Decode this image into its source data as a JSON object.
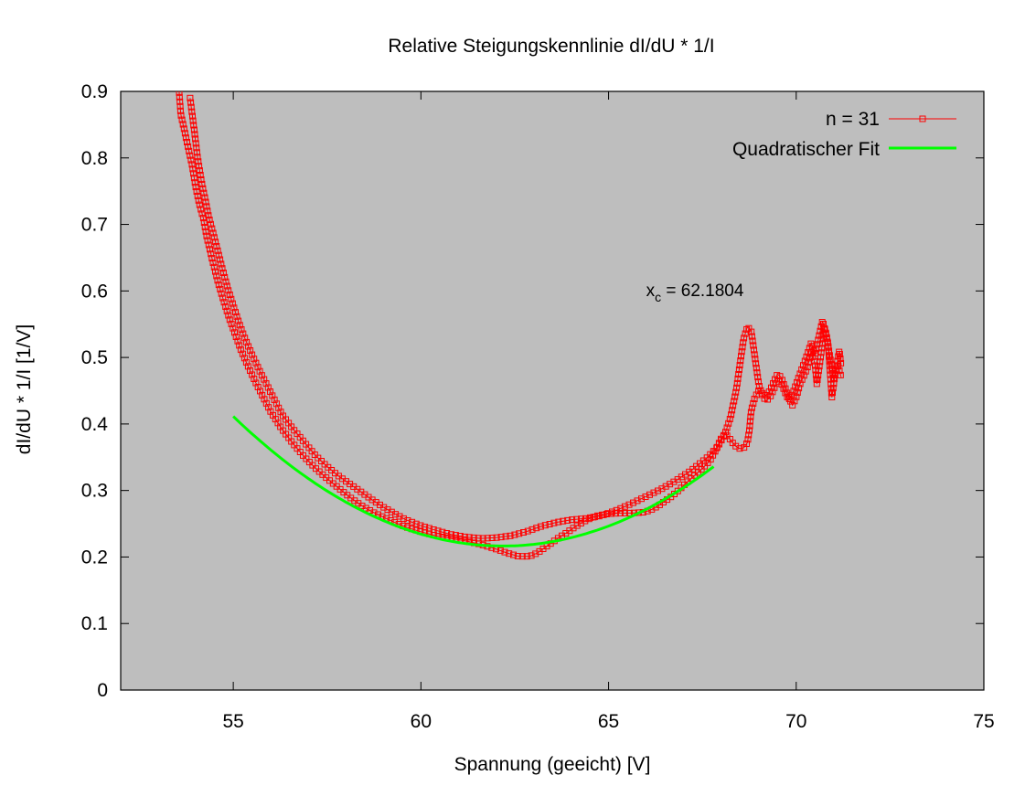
{
  "chart_data": {
    "type": "line",
    "title": "Relative Steigungskennlinie dI/dU * 1/I",
    "xlabel": "Spannung (geeicht) [V]",
    "ylabel": "dI/dU * 1/I [1/V]",
    "xlim": [
      52,
      75
    ],
    "ylim": [
      0,
      0.9
    ],
    "x_ticks": [
      "55",
      "60",
      "65",
      "70",
      "75"
    ],
    "y_ticks": [
      "0",
      "0.1",
      "0.2",
      "0.3",
      "0.4",
      "0.5",
      "0.6",
      "0.7",
      "0.8",
      "0.9"
    ],
    "grid": false,
    "background": "#bebebe",
    "legend_position": "top-right",
    "annotation": {
      "base": "x",
      "subscript": "c",
      "text": " = 62.1804",
      "x": 66.0,
      "y": 0.592
    },
    "series": [
      {
        "name": "n = 31",
        "color": "#ff0000",
        "marker": "square",
        "segments": [
          [
            [
              53.55,
              0.905
            ],
            [
              53.6,
              0.866
            ],
            [
              53.75,
              0.828
            ],
            [
              53.9,
              0.79
            ],
            [
              54.0,
              0.756
            ],
            [
              54.1,
              0.73
            ],
            [
              54.2,
              0.71
            ],
            [
              54.3,
              0.68
            ],
            [
              54.45,
              0.645
            ],
            [
              54.6,
              0.612
            ],
            [
              54.75,
              0.584
            ],
            [
              54.9,
              0.558
            ],
            [
              55.05,
              0.535
            ],
            [
              55.2,
              0.512
            ],
            [
              55.4,
              0.486
            ],
            [
              55.6,
              0.462
            ],
            [
              55.8,
              0.44
            ],
            [
              56.0,
              0.418
            ],
            [
              56.3,
              0.392
            ],
            [
              56.6,
              0.37
            ],
            [
              56.9,
              0.35
            ],
            [
              57.2,
              0.333
            ],
            [
              57.5,
              0.318
            ],
            [
              57.8,
              0.304
            ],
            [
              58.1,
              0.29
            ],
            [
              58.4,
              0.278
            ],
            [
              58.7,
              0.268
            ],
            [
              59.0,
              0.26
            ],
            [
              59.3,
              0.252
            ],
            [
              59.6,
              0.245
            ],
            [
              60.0,
              0.238
            ],
            [
              60.4,
              0.232
            ],
            [
              60.8,
              0.228
            ],
            [
              61.2,
              0.224
            ],
            [
              61.6,
              0.219
            ],
            [
              62.0,
              0.212
            ],
            [
              62.3,
              0.206
            ],
            [
              62.6,
              0.201
            ],
            [
              62.9,
              0.201
            ],
            [
              63.1,
              0.206
            ],
            [
              63.3,
              0.214
            ],
            [
              63.5,
              0.222
            ],
            [
              63.7,
              0.23
            ],
            [
              63.9,
              0.237
            ],
            [
              64.1,
              0.245
            ],
            [
              64.3,
              0.252
            ],
            [
              64.5,
              0.258
            ],
            [
              64.7,
              0.262
            ],
            [
              65.0,
              0.265
            ],
            [
              65.3,
              0.266
            ],
            [
              65.6,
              0.266
            ],
            [
              65.9,
              0.267
            ],
            [
              66.1,
              0.27
            ],
            [
              66.3,
              0.276
            ],
            [
              66.5,
              0.284
            ],
            [
              66.7,
              0.292
            ],
            [
              66.9,
              0.302
            ],
            [
              67.1,
              0.313
            ],
            [
              67.3,
              0.323
            ],
            [
              67.5,
              0.333
            ],
            [
              67.7,
              0.345
            ],
            [
              67.85,
              0.36
            ],
            [
              68.0,
              0.378
            ],
            [
              68.1,
              0.385
            ],
            [
              68.2,
              0.38
            ],
            [
              68.3,
              0.372
            ],
            [
              68.4,
              0.366
            ],
            [
              68.5,
              0.363
            ],
            [
              68.6,
              0.364
            ],
            [
              68.7,
              0.372
            ],
            [
              68.75,
              0.39
            ],
            [
              68.8,
              0.42
            ],
            [
              68.9,
              0.44
            ],
            [
              69.0,
              0.45
            ],
            [
              69.1,
              0.446
            ],
            [
              69.2,
              0.443
            ],
            [
              69.3,
              0.45
            ],
            [
              69.4,
              0.463
            ],
            [
              69.5,
              0.475
            ],
            [
              69.6,
              0.47
            ],
            [
              69.7,
              0.455
            ],
            [
              69.8,
              0.44
            ],
            [
              69.9,
              0.428
            ],
            [
              70.0,
              0.44
            ],
            [
              70.1,
              0.46
            ],
            [
              70.2,
              0.472
            ],
            [
              70.3,
              0.485
            ],
            [
              70.4,
              0.51
            ],
            [
              70.5,
              0.49
            ],
            [
              70.55,
              0.46
            ],
            [
              70.65,
              0.5
            ],
            [
              70.75,
              0.545
            ],
            [
              70.85,
              0.52
            ],
            [
              70.9,
              0.48
            ],
            [
              70.95,
              0.44
            ],
            [
              71.05,
              0.48
            ],
            [
              71.15,
              0.51
            ],
            [
              71.2,
              0.487
            ]
          ],
          [
            [
              53.85,
              0.89
            ],
            [
              53.95,
              0.846
            ],
            [
              54.05,
              0.8
            ],
            [
              54.15,
              0.765
            ],
            [
              54.25,
              0.738
            ],
            [
              54.35,
              0.71
            ],
            [
              54.45,
              0.69
            ],
            [
              54.55,
              0.668
            ],
            [
              54.7,
              0.635
            ],
            [
              54.85,
              0.604
            ],
            [
              55.0,
              0.578
            ],
            [
              55.15,
              0.552
            ],
            [
              55.3,
              0.53
            ],
            [
              55.5,
              0.504
            ],
            [
              55.7,
              0.48
            ],
            [
              55.9,
              0.458
            ],
            [
              56.1,
              0.436
            ],
            [
              56.3,
              0.414
            ],
            [
              56.6,
              0.392
            ],
            [
              56.9,
              0.372
            ],
            [
              57.2,
              0.352
            ],
            [
              57.5,
              0.336
            ],
            [
              57.8,
              0.322
            ],
            [
              58.1,
              0.31
            ],
            [
              58.4,
              0.298
            ],
            [
              58.7,
              0.286
            ],
            [
              59.0,
              0.275
            ],
            [
              59.3,
              0.265
            ],
            [
              59.6,
              0.256
            ],
            [
              60.0,
              0.247
            ],
            [
              60.4,
              0.24
            ],
            [
              60.8,
              0.234
            ],
            [
              61.2,
              0.23
            ],
            [
              61.6,
              0.228
            ],
            [
              62.0,
              0.229
            ],
            [
              62.4,
              0.232
            ],
            [
              62.8,
              0.238
            ],
            [
              63.2,
              0.246
            ],
            [
              63.6,
              0.252
            ],
            [
              64.0,
              0.256
            ],
            [
              64.4,
              0.258
            ],
            [
              64.8,
              0.262
            ],
            [
              65.2,
              0.27
            ],
            [
              65.6,
              0.28
            ],
            [
              66.0,
              0.291
            ],
            [
              66.4,
              0.302
            ],
            [
              66.8,
              0.315
            ],
            [
              67.2,
              0.33
            ],
            [
              67.6,
              0.348
            ],
            [
              67.9,
              0.365
            ],
            [
              68.1,
              0.385
            ],
            [
              68.25,
              0.41
            ],
            [
              68.4,
              0.45
            ],
            [
              68.5,
              0.49
            ],
            [
              68.6,
              0.528
            ],
            [
              68.7,
              0.546
            ],
            [
              68.8,
              0.54
            ],
            [
              68.9,
              0.5
            ],
            [
              69.0,
              0.46
            ],
            [
              69.1,
              0.442
            ],
            [
              69.2,
              0.435
            ],
            [
              69.3,
              0.44
            ],
            [
              69.4,
              0.452
            ],
            [
              69.5,
              0.465
            ],
            [
              69.6,
              0.462
            ],
            [
              69.7,
              0.448
            ],
            [
              69.8,
              0.436
            ],
            [
              69.9,
              0.445
            ],
            [
              70.0,
              0.46
            ],
            [
              70.1,
              0.475
            ],
            [
              70.2,
              0.49
            ],
            [
              70.3,
              0.505
            ],
            [
              70.4,
              0.522
            ],
            [
              70.5,
              0.505
            ],
            [
              70.6,
              0.53
            ],
            [
              70.7,
              0.555
            ],
            [
              70.8,
              0.535
            ],
            [
              70.9,
              0.5
            ],
            [
              71.0,
              0.468
            ],
            [
              71.1,
              0.49
            ],
            [
              71.2,
              0.47
            ]
          ]
        ]
      },
      {
        "name": "Quadratischer Fit",
        "color": "#00ff00",
        "function": {
          "a": 0.00378,
          "x0": 62.1804,
          "c": 0.2165
        },
        "domain": [
          55,
          67.8
        ]
      }
    ]
  }
}
